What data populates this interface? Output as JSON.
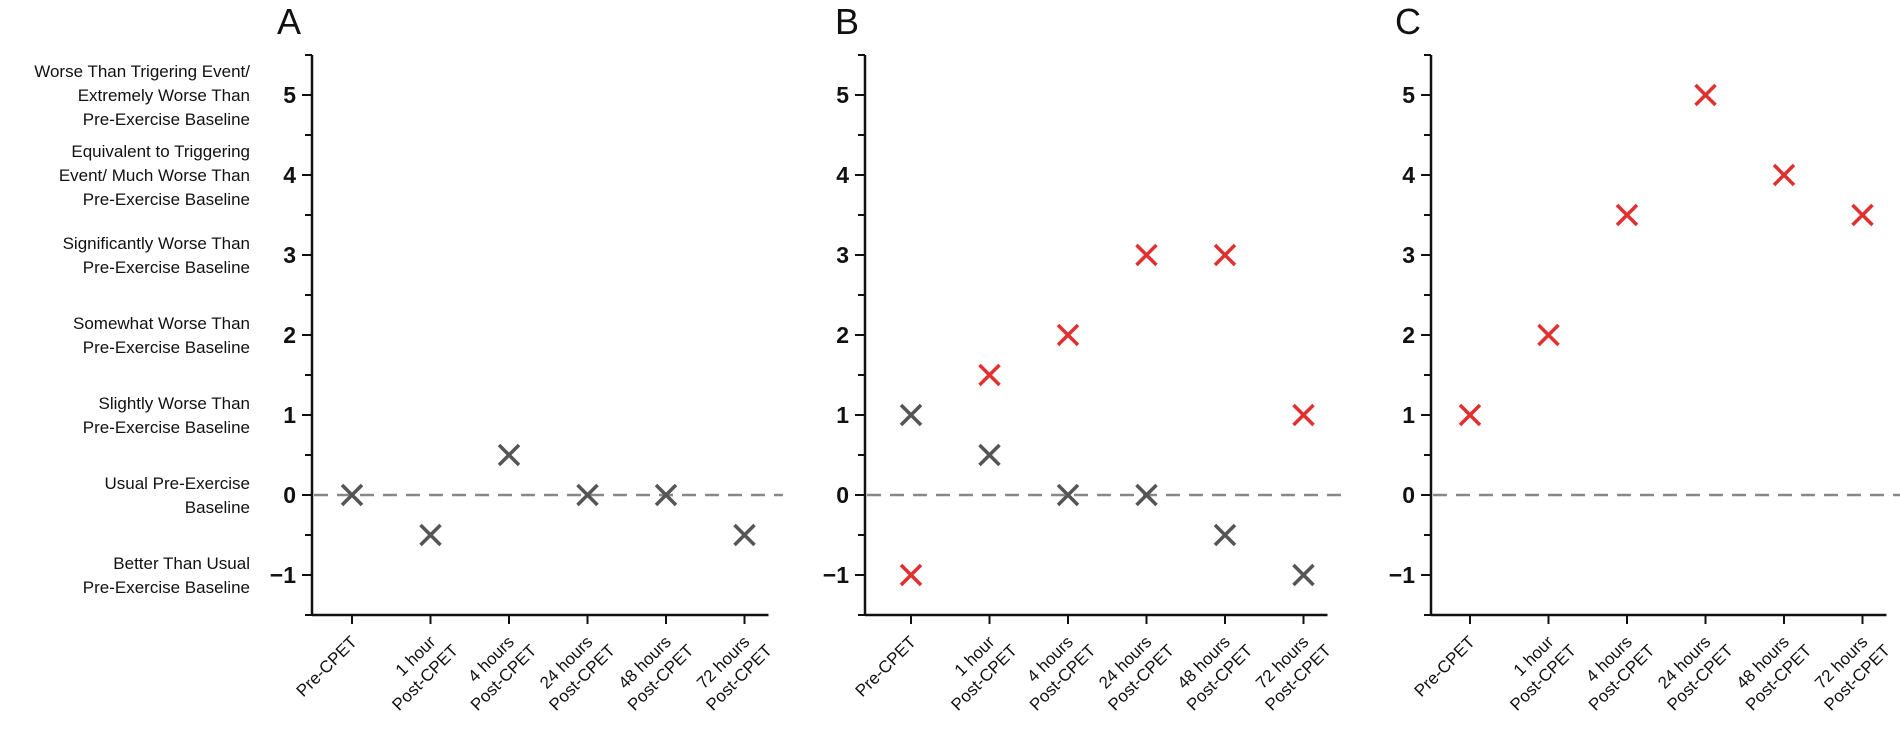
{
  "chart_data": {
    "type": "scatter",
    "y_category_labels": [
      {
        "value": 5,
        "lines": [
          "Worse Than Trigering Event/",
          "Extremely Worse Than",
          "Pre-Exercise Baseline"
        ]
      },
      {
        "value": 4,
        "lines": [
          "Equivalent to Triggering",
          "Event/ Much Worse Than",
          "Pre-Exercise Baseline"
        ]
      },
      {
        "value": 3,
        "lines": [
          "Significantly Worse Than",
          "Pre-Exercise Baseline"
        ]
      },
      {
        "value": 2,
        "lines": [
          "Somewhat Worse Than",
          "Pre-Exercise Baseline"
        ]
      },
      {
        "value": 1,
        "lines": [
          "Slightly Worse Than",
          "Pre-Exercise Baseline"
        ]
      },
      {
        "value": 0,
        "lines": [
          "Usual Pre-Exercise",
          "Baseline"
        ]
      },
      {
        "value": -1,
        "lines": [
          "Better Than Usual",
          "Pre-Exercise Baseline"
        ]
      }
    ],
    "yticks": [
      5,
      4,
      3,
      2,
      1,
      0,
      -1
    ],
    "ytick_labels": [
      "5",
      "4",
      "3",
      "2",
      "1",
      "0",
      "−1"
    ],
    "ylim": [
      -1.5,
      5.5
    ],
    "reference_line": 0,
    "categories": [
      [
        "Pre-CPET"
      ],
      [
        "1 hour",
        "Post-CPET"
      ],
      [
        "4 hours",
        "Post-CPET"
      ],
      [
        "24 hours",
        "Post-CPET"
      ],
      [
        "48 hours",
        "Post-CPET"
      ],
      [
        "72 hours",
        "Post-CPET"
      ]
    ],
    "colors": {
      "gray": "#555555",
      "red": "#e03030",
      "axis": "#111111",
      "refline": "#888888"
    },
    "panels": [
      {
        "label": "A",
        "series": [
          {
            "name": "gray",
            "color": "gray",
            "values": [
              0,
              -0.5,
              0.5,
              0,
              0,
              -0.5
            ]
          }
        ]
      },
      {
        "label": "B",
        "series": [
          {
            "name": "gray",
            "color": "gray",
            "values": [
              1,
              0.5,
              0,
              0,
              -0.5,
              -1
            ]
          },
          {
            "name": "red",
            "color": "red",
            "values": [
              -1,
              1.5,
              2,
              3,
              3,
              1
            ]
          }
        ]
      },
      {
        "label": "C",
        "series": [
          {
            "name": "red",
            "color": "red",
            "values": [
              1,
              2,
              3.5,
              5,
              4,
              3.5
            ]
          }
        ]
      }
    ]
  }
}
